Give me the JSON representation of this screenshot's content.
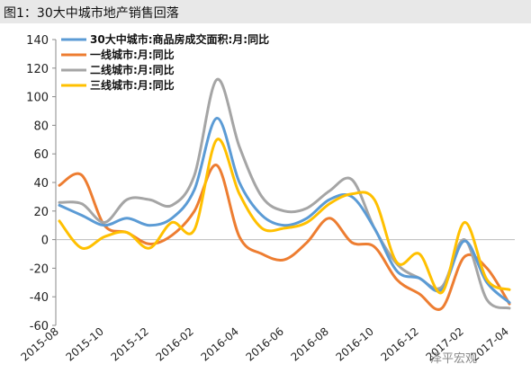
{
  "title": "图1：30大中城市地产销售回落",
  "watermark": "泽平宏观",
  "chart_data": {
    "type": "line",
    "title": "图1：30大中城市地产销售回落",
    "ylim": [
      -60,
      140
    ],
    "yticks": [
      140,
      120,
      100,
      80,
      60,
      40,
      20,
      0,
      -20,
      -40,
      -60
    ],
    "x_tick_labels": [
      "2015-08",
      "2015-10",
      "2015-12",
      "2016-02",
      "2016-04",
      "2016-06",
      "2016-08",
      "2016-10",
      "2016-12",
      "2017-02",
      "2017-04"
    ],
    "x": [
      "2015-08",
      "2015-09",
      "2015-10",
      "2015-11",
      "2015-12",
      "2016-01",
      "2016-02",
      "2016-03",
      "2016-04",
      "2016-05",
      "2016-06",
      "2016-07",
      "2016-08",
      "2016-09",
      "2016-10",
      "2016-11",
      "2016-12",
      "2017-01",
      "2017-02",
      "2017-03",
      "2017-04"
    ],
    "series": [
      {
        "name": "30大中城市:商品房成交面积:月:同比",
        "color": "#5b9bd5",
        "values": [
          24,
          17,
          10,
          15,
          10,
          15,
          35,
          85,
          40,
          17,
          10,
          15,
          28,
          30,
          8,
          -22,
          -27,
          -35,
          -1,
          -30,
          -44
        ]
      },
      {
        "name": "一线城市:月:同比",
        "color": "#ed7d31",
        "values": [
          38,
          45,
          10,
          5,
          -3,
          3,
          20,
          52,
          2,
          -10,
          -14,
          -2,
          15,
          -2,
          -5,
          -28,
          -38,
          -48,
          -12,
          -20,
          -45
        ]
      },
      {
        "name": "二线城市:月:同比",
        "color": "#a5a5a5",
        "values": [
          26,
          25,
          12,
          28,
          28,
          24,
          45,
          112,
          65,
          30,
          20,
          22,
          34,
          42,
          8,
          -17,
          -27,
          -33,
          0,
          -42,
          -48
        ]
      },
      {
        "name": "三线城市:月:同比",
        "color": "#ffc000",
        "values": [
          13,
          -6,
          2,
          5,
          -6,
          12,
          7,
          70,
          32,
          8,
          8,
          12,
          25,
          32,
          28,
          -16,
          -10,
          -37,
          12,
          -28,
          -35
        ]
      }
    ],
    "grid": false,
    "legend": "top-left"
  }
}
